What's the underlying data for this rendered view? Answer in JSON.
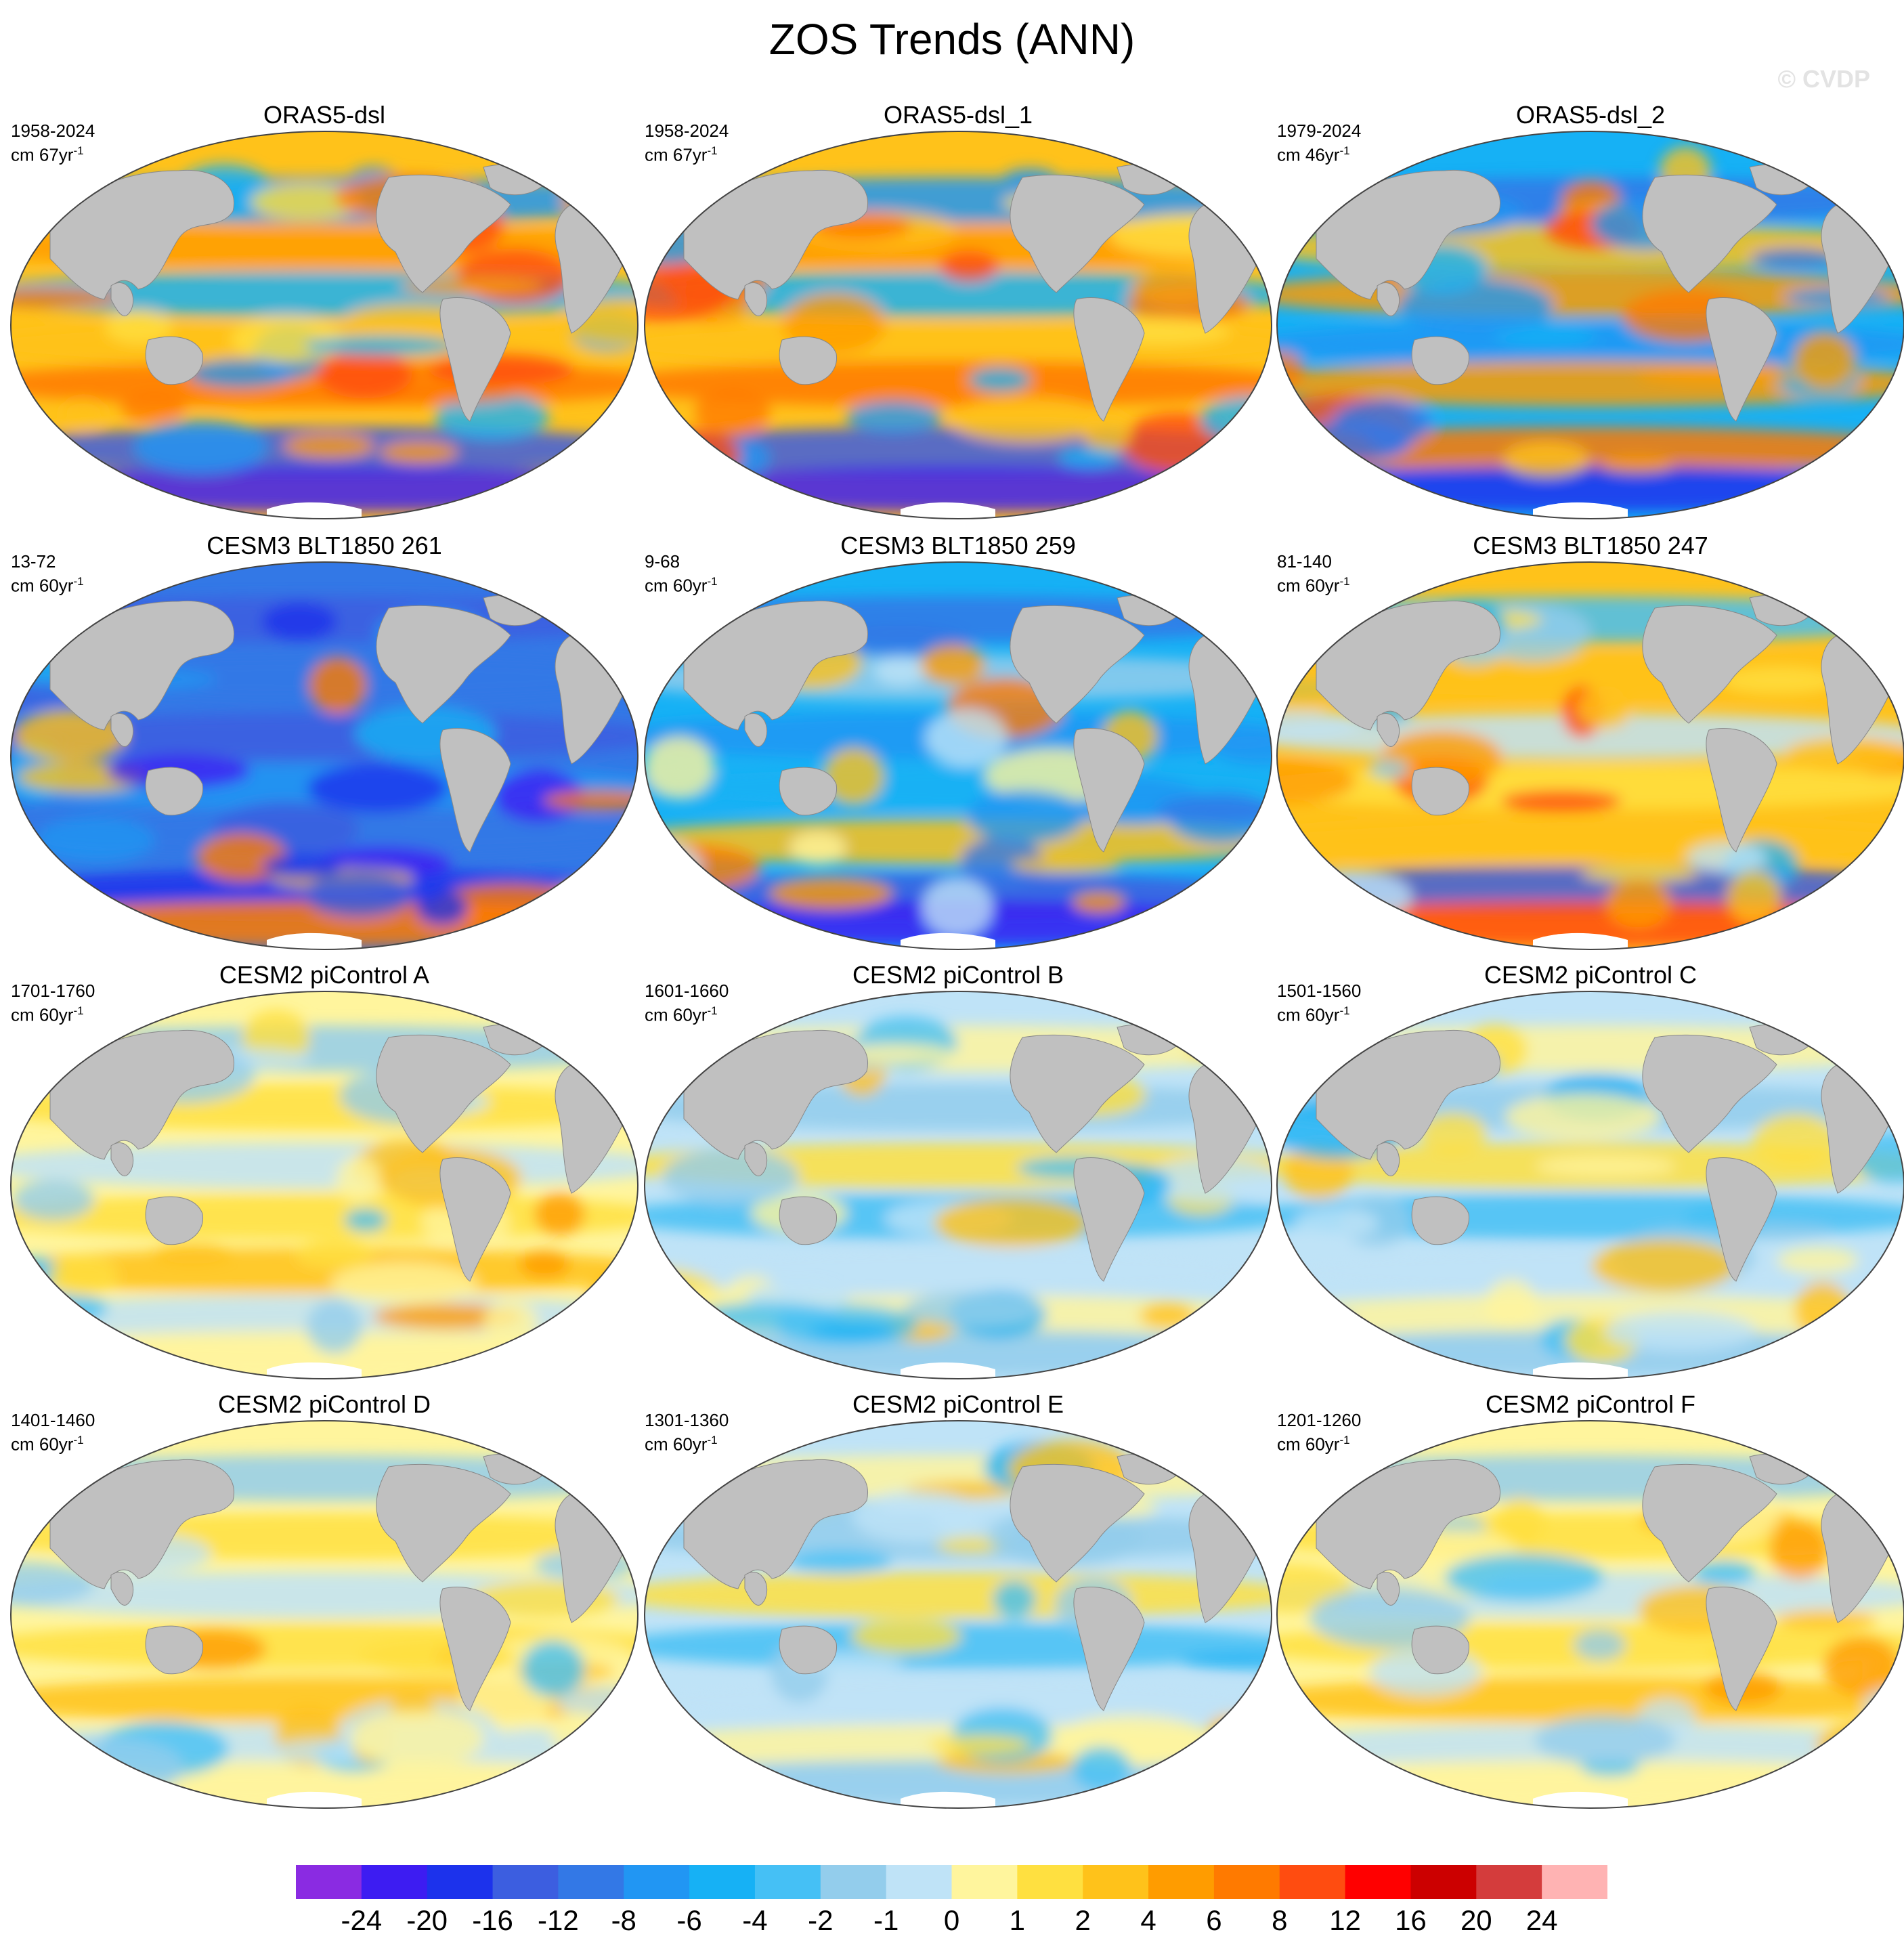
{
  "figure": {
    "title": "ZOS Trends (ANN)",
    "watermark": "© CVDP"
  },
  "panels": [
    {
      "title": "ORAS5-dsl",
      "period": "1958-2024",
      "units_prefix": "cm 67yr",
      "units_exp": "-1",
      "pattern": "obs"
    },
    {
      "title": "ORAS5-dsl_1",
      "period": "1958-2024",
      "units_prefix": "cm 67yr",
      "units_exp": "-1",
      "pattern": "obs"
    },
    {
      "title": "ORAS5-dsl_2",
      "period": "1979-2024",
      "units_prefix": "cm 46yr",
      "units_exp": "-1",
      "pattern": "obs2"
    },
    {
      "title": "CESM3 BLT1850 261",
      "period": "13-72",
      "units_prefix": "cm 60yr",
      "units_exp": "-1",
      "pattern": "negative"
    },
    {
      "title": "CESM3 BLT1850 259",
      "period": "9-68",
      "units_prefix": "cm 60yr",
      "units_exp": "-1",
      "pattern": "mixed_neg"
    },
    {
      "title": "CESM3 BLT1850 247",
      "period": "81-140",
      "units_prefix": "cm 60yr",
      "units_exp": "-1",
      "pattern": "mixed_pos"
    },
    {
      "title": "CESM2 piControl A",
      "period": "1701-1760",
      "units_prefix": "cm 60yr",
      "units_exp": "-1",
      "pattern": "weak_pos"
    },
    {
      "title": "CESM2 piControl B",
      "period": "1601-1660",
      "units_prefix": "cm 60yr",
      "units_exp": "-1",
      "pattern": "weak_mixed"
    },
    {
      "title": "CESM2 piControl C",
      "period": "1501-1560",
      "units_prefix": "cm 60yr",
      "units_exp": "-1",
      "pattern": "weak_mixed"
    },
    {
      "title": "CESM2 piControl D",
      "period": "1401-1460",
      "units_prefix": "cm 60yr",
      "units_exp": "-1",
      "pattern": "weak_pos"
    },
    {
      "title": "CESM2 piControl E",
      "period": "1301-1360",
      "units_prefix": "cm 60yr",
      "units_exp": "-1",
      "pattern": "weak_mixed"
    },
    {
      "title": "CESM2 piControl F",
      "period": "1201-1260",
      "units_prefix": "cm 60yr",
      "units_exp": "-1",
      "pattern": "weak_pos"
    }
  ],
  "colorbar": {
    "colors": [
      "#8a2be2",
      "#3d1cf2",
      "#1c32ec",
      "#3c5ee0",
      "#3378e6",
      "#2196f3",
      "#16b1f5",
      "#45c0f5",
      "#93cdec",
      "#bfe3f7",
      "#fff59d",
      "#ffe040",
      "#ffc21a",
      "#ff9c00",
      "#ff7a00",
      "#ff4c10",
      "#ff0000",
      "#cc0000",
      "#d43c3c",
      "#ffb3b3"
    ],
    "labels": [
      "-24",
      "-20",
      "-16",
      "-12",
      "-8",
      "-6",
      "-4",
      "-2",
      "-1",
      "0",
      "1",
      "2",
      "4",
      "6",
      "8",
      "12",
      "16",
      "20",
      "24"
    ]
  },
  "style": {
    "land": "#c0c0c0",
    "ice": "#ffffff",
    "outline": "#444444"
  }
}
